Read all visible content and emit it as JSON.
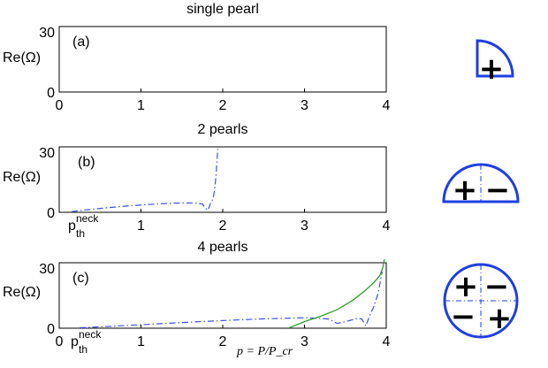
{
  "panels": [
    {
      "title": "single pearl",
      "label": "(a)",
      "ylabel": "Re(Ω)",
      "y_ticks": [
        "0",
        "30"
      ],
      "x_ticks": [
        "0",
        "1",
        "2",
        "3",
        "4"
      ],
      "pth_label": "",
      "pth_sup": "",
      "xlabel_formula": "",
      "inset_signs": [
        "+"
      ]
    },
    {
      "title": "2 pearls",
      "label": "(b)",
      "ylabel": "Re(Ω)",
      "y_ticks": [
        "0",
        "30"
      ],
      "x_ticks": [
        "1",
        "2",
        "3",
        "4"
      ],
      "pth_label": "p",
      "pth_sub": "th",
      "pth_sup": "neck",
      "xlabel_formula": "",
      "inset_signs": [
        "+",
        "−"
      ]
    },
    {
      "title": "4 pearls",
      "label": "(c)",
      "ylabel": "Re(Ω)",
      "y_ticks": [
        "0",
        "30"
      ],
      "x_ticks": [
        "0",
        "1",
        "2",
        "3",
        "4"
      ],
      "pth_label": "p",
      "pth_sub": "th",
      "pth_sup": "neck",
      "xlabel_formula": "p = P/P_cr",
      "inset_signs": [
        "+",
        "−",
        "−",
        "+"
      ]
    }
  ],
  "colors": {
    "dashed_series": "#3a52e6",
    "solid_series": "#1a9a1a",
    "inset_outline": "#1f3fe0",
    "inset_divider": "#1f3fe0"
  },
  "chart_data": [
    {
      "type": "line",
      "title": "single pearl",
      "label": "(a)",
      "ylabel": "Re(Ω)",
      "xlim": [
        0,
        4
      ],
      "ylim": [
        0,
        30
      ],
      "series": []
    },
    {
      "type": "line",
      "title": "2 pearls",
      "label": "(b)",
      "ylabel": "Re(Ω)",
      "xlim": [
        0,
        4
      ],
      "ylim": [
        0,
        30
      ],
      "series": [
        {
          "style": "dashdot",
          "color": "#3a52e6",
          "x": [
            0.15,
            0.3,
            0.5,
            0.8,
            1.1,
            1.4,
            1.65,
            1.75,
            1.8,
            1.82,
            1.85,
            1.88,
            1.9,
            1.92,
            1.94
          ],
          "y": [
            0.3,
            1.0,
            1.8,
            2.8,
            3.6,
            4.2,
            4.3,
            3.8,
            1.5,
            1.0,
            4.0,
            6.0,
            10.0,
            18.0,
            29.0
          ]
        }
      ]
    },
    {
      "type": "line",
      "title": "4 pearls",
      "label": "(c)",
      "ylabel": "Re(Ω)",
      "xlabel": "p = P/P_cr",
      "xlim": [
        0,
        4
      ],
      "ylim": [
        0,
        30
      ],
      "series": [
        {
          "style": "dashdot",
          "color": "#3a52e6",
          "x": [
            0.25,
            0.5,
            1.0,
            1.5,
            2.0,
            2.5,
            3.0,
            3.3,
            3.4,
            3.5,
            3.6,
            3.65,
            3.7,
            3.75,
            3.8,
            3.85,
            3.9,
            3.95
          ],
          "y": [
            0.2,
            0.6,
            1.6,
            2.6,
            3.5,
            4.3,
            4.8,
            4.2,
            2.2,
            3.0,
            4.0,
            4.6,
            4.2,
            1.0,
            6.0,
            10.0,
            16.0,
            26.0
          ]
        },
        {
          "style": "solid",
          "color": "#1a9a1a",
          "x": [
            2.8,
            3.0,
            3.2,
            3.4,
            3.6,
            3.75,
            3.85,
            3.92,
            3.96,
            3.98
          ],
          "y": [
            0.0,
            3.0,
            5.5,
            8.5,
            13.0,
            17.5,
            21.0,
            24.0,
            28.0,
            32.0
          ]
        }
      ]
    }
  ]
}
